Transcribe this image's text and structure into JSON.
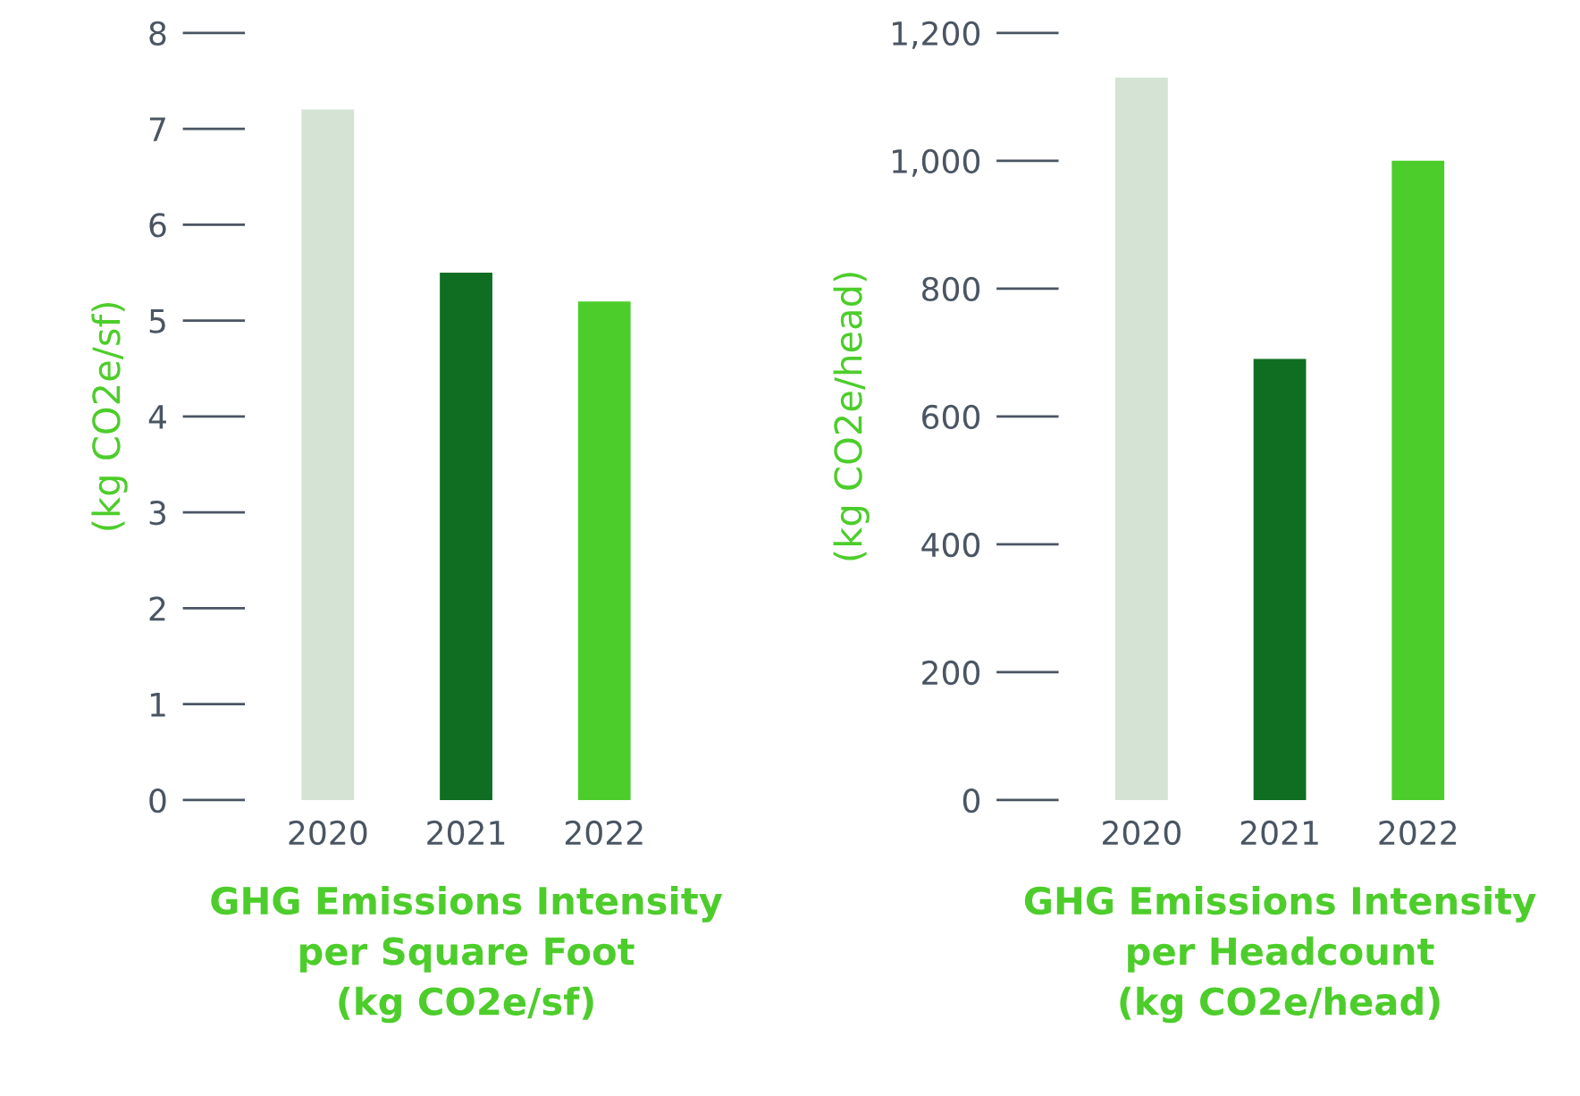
{
  "chart_data": [
    {
      "type": "bar",
      "categories": [
        "2020",
        "2021",
        "2022"
      ],
      "values": [
        7.2,
        5.5,
        5.2
      ],
      "colors": [
        "#d4e3d4",
        "#0f6e22",
        "#4dcd2b"
      ],
      "ylim": [
        0,
        8
      ],
      "yticks": [
        0,
        1,
        2,
        3,
        4,
        5,
        6,
        7,
        8
      ],
      "ylabel": "(kg CO2e/sf)",
      "xlabel": "GHG Emissions Intensity\nper Square Foot\n(kg CO2e/sf)",
      "grid": false,
      "legend": false
    },
    {
      "type": "bar",
      "categories": [
        "2020",
        "2021",
        "2022"
      ],
      "values": [
        1130,
        690,
        1000
      ],
      "colors": [
        "#d4e3d4",
        "#0f6e22",
        "#4dcd2b"
      ],
      "ylim": [
        0,
        1200
      ],
      "yticks": [
        {
          "value": 0,
          "label": "0"
        },
        {
          "value": 200,
          "label": "200"
        },
        {
          "value": 400,
          "label": "400"
        },
        {
          "value": 600,
          "label": "600"
        },
        {
          "value": 800,
          "label": "800"
        },
        {
          "value": 1000,
          "label": "1,000"
        },
        {
          "value": 1200,
          "label": "1,200"
        }
      ],
      "ylabel": "(kg CO2e/head)",
      "xlabel": "GHG Emissions Intensity\nper Headcount\n(kg CO2e/head)",
      "grid": false,
      "legend": false
    }
  ]
}
